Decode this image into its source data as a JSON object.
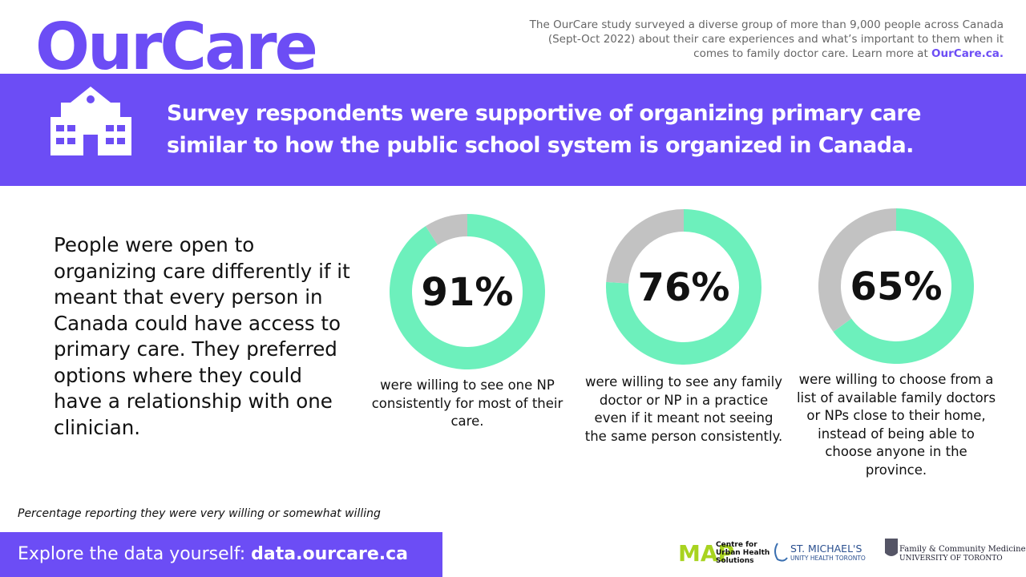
{
  "header": {
    "logo": "OurCare",
    "intro": "The OurCare study surveyed a diverse group of more than 9,000 people across Canada (Sept-Oct 2022) about their care experiences and what’s important to them when it comes to family doctor care. Learn more at",
    "intro_link": "OurCare.ca.",
    "banner": "Survey respondents were supportive of organizing primary care similar to how the public school system is organized in Canada."
  },
  "body_text": "People were open to organizing care differently if it meant that every person in Canada could have access to primary care. They preferred options where they could have a relationship with one clinician.",
  "chart_data": [
    {
      "type": "donut",
      "values": [
        91,
        9
      ],
      "colors": [
        "#6df0bc",
        "#c2c2c2"
      ],
      "center_label": "91%",
      "caption": "were willing to see one NP consistently for most of their care."
    },
    {
      "type": "donut",
      "values": [
        76,
        24
      ],
      "colors": [
        "#6df0bc",
        "#c2c2c2"
      ],
      "center_label": "76%",
      "caption": "were willing to see any family doctor or NP in a practice even if it meant not seeing the same person consistently."
    },
    {
      "type": "donut",
      "values": [
        65,
        35
      ],
      "colors": [
        "#6df0bc",
        "#c2c2c2"
      ],
      "center_label": "65%",
      "caption": "were willing to choose from a list of available family doctors or NPs close to their home, instead of being able to choose anyone in the province."
    }
  ],
  "footnote": "Percentage reporting they were very willing or somewhat willing",
  "footer": {
    "prompt": "Explore the data yourself:",
    "link": "data.ourcare.ca"
  },
  "logos": {
    "map": "MAP",
    "map_name": "Centre for Urban Health Solutions",
    "smh": "ST. MICHAEL'S",
    "smh_sub": "UNITY HEALTH TORONTO",
    "uoft_dept": "Family & Community Medicine",
    "uoft": "UNIVERSITY OF TORONTO"
  }
}
